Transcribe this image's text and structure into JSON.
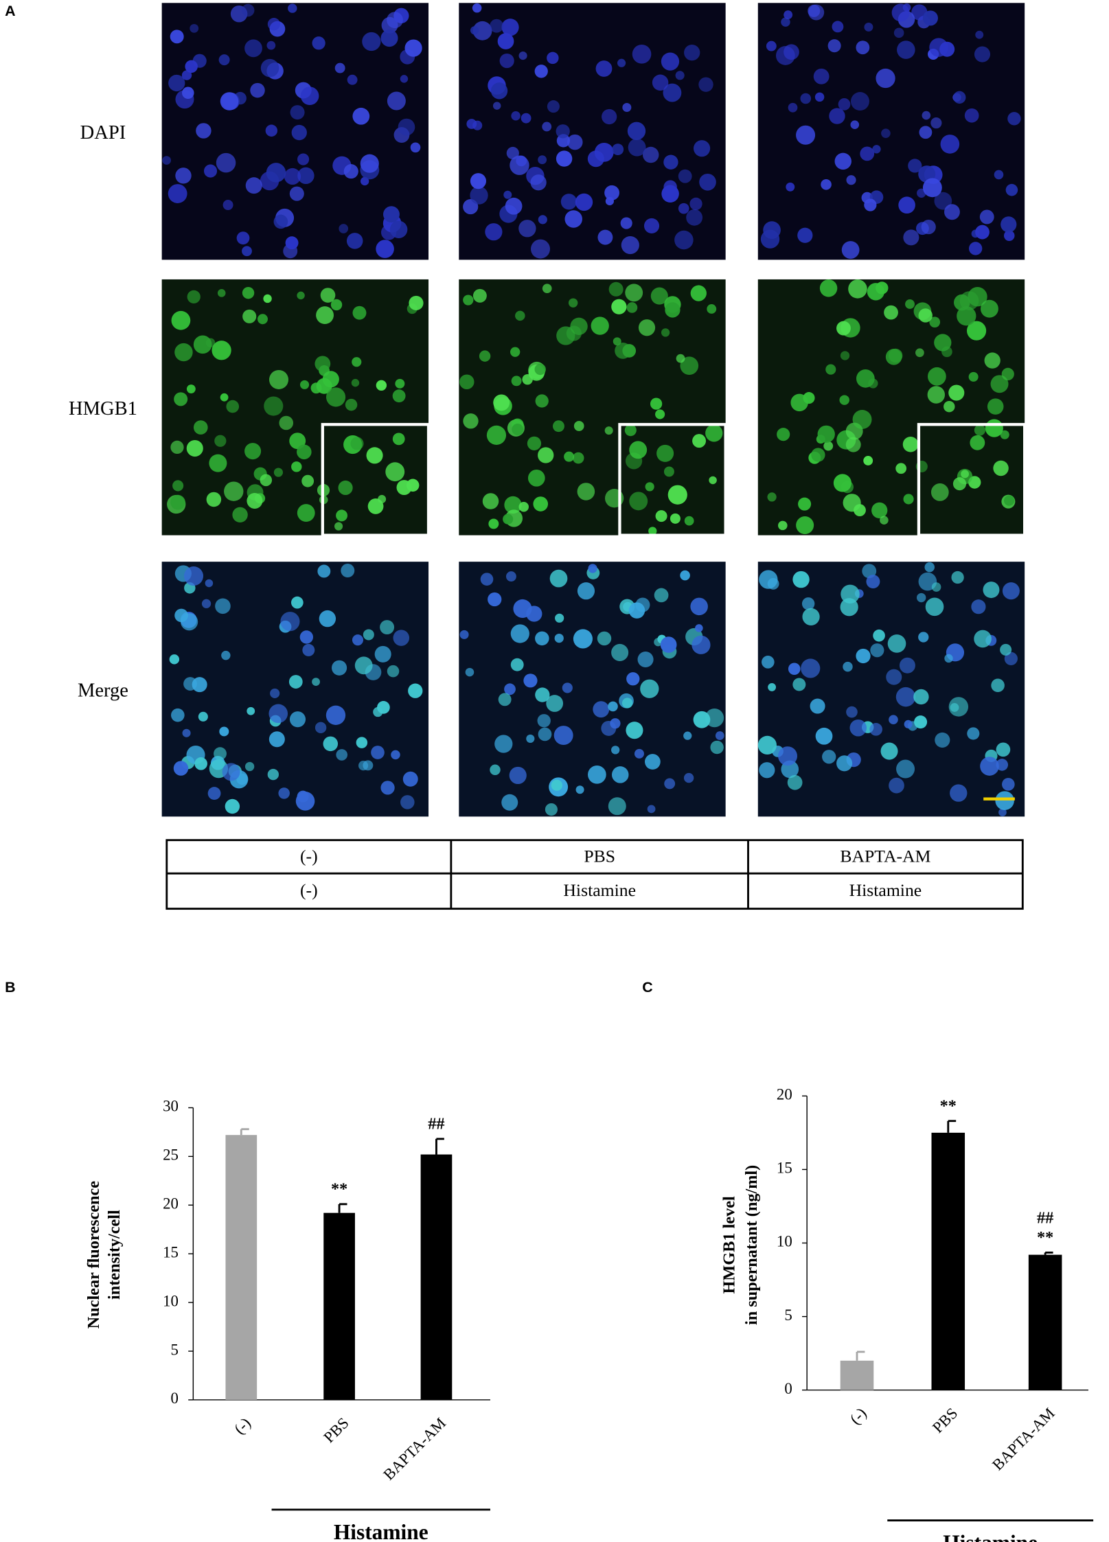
{
  "panel_a": {
    "label": "A",
    "rows": [
      "DAPI",
      "HMGB1",
      "Merge"
    ],
    "table": [
      [
        "(-)",
        "PBS",
        "BAPTA-AM"
      ],
      [
        "(-)",
        "Histamine",
        "Histamine"
      ]
    ]
  },
  "chart_data": [
    {
      "type": "bar",
      "panel_label": "B",
      "y_label": [
        "Nuclear fluorescence",
        "intensity/cell"
      ],
      "categories": [
        "(-)",
        "PBS",
        "BAPTA-AM"
      ],
      "values": [
        27.2,
        19.2,
        25.2
      ],
      "errors": [
        0.6,
        0.9,
        1.6
      ],
      "colors": [
        "#a6a6a6",
        "#000000",
        "#000000"
      ],
      "annotations": [
        null,
        [
          "**"
        ],
        [
          "##"
        ]
      ],
      "group_label": "Histamine",
      "ylim": [
        0,
        30
      ],
      "yticks": [
        0,
        5,
        10,
        15,
        20,
        25,
        30
      ]
    },
    {
      "type": "bar",
      "panel_label": "C",
      "y_label": [
        "HMGB1 level",
        "in supernatant (ng/ml)"
      ],
      "categories": [
        "(-)",
        "PBS",
        "BAPTA-AM"
      ],
      "values": [
        2.0,
        17.5,
        9.2
      ],
      "errors": [
        0.6,
        0.8,
        0.15
      ],
      "colors": [
        "#a6a6a6",
        "#000000",
        "#000000"
      ],
      "annotations": [
        null,
        [
          "**"
        ],
        [
          "##",
          "**"
        ]
      ],
      "group_label": "Histamine",
      "ylim": [
        0,
        20
      ],
      "yticks": [
        0,
        5,
        10,
        15,
        20
      ]
    }
  ]
}
